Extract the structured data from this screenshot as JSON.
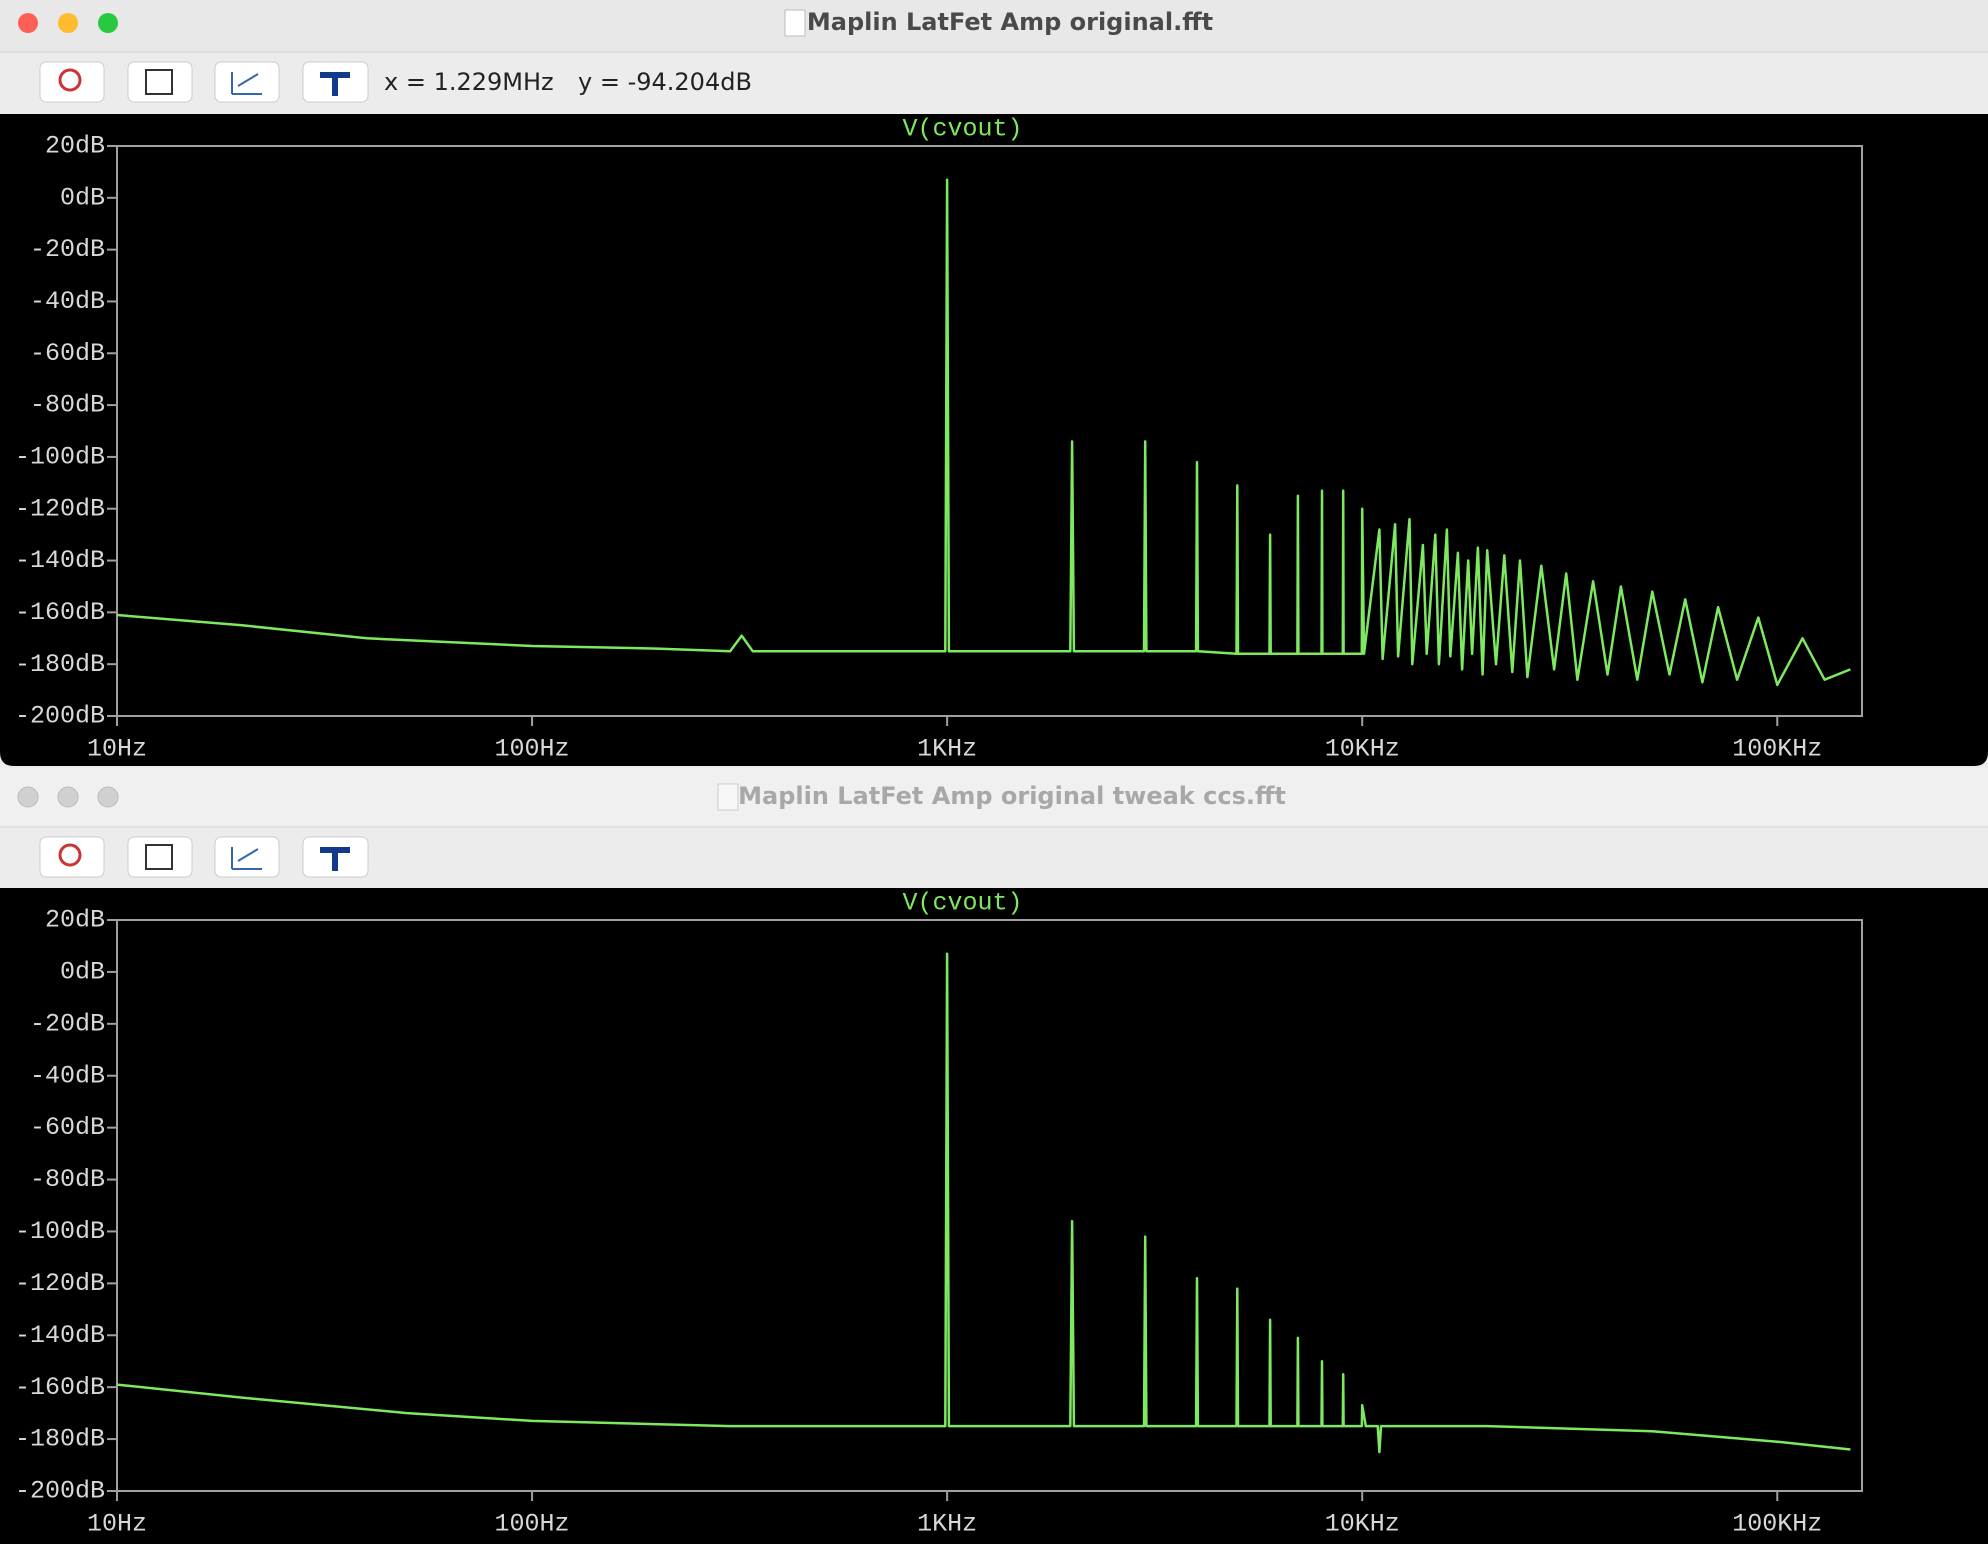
{
  "windows": [
    {
      "title": "Maplin LatFet Amp original.fft",
      "readout": {
        "x": "x = 1.229MHz",
        "y": "y = -94.204dB"
      }
    },
    {
      "title": "Maplin LatFet Amp original tweak ccs.fft"
    }
  ],
  "chart_data": [
    {
      "type": "line",
      "title": "V(cvout)",
      "color": "#7ee860",
      "xscale": "log",
      "x": [
        10,
        20,
        40,
        100,
        200,
        300,
        320,
        340,
        600,
        900,
        990,
        1000,
        1010,
        1100,
        1980,
        2000,
        2020,
        2980,
        3000,
        3020,
        3980,
        4000,
        4020,
        4980,
        5000,
        5020,
        5980,
        6000,
        6020,
        6980,
        7000,
        7020,
        7980,
        8000,
        8020,
        8980,
        9000,
        9020,
        9980,
        10000,
        10100,
        11000,
        11200,
        12000,
        12200,
        13000,
        13200,
        14000,
        14300,
        15000,
        15300,
        16000,
        16300,
        17000,
        17400,
        18000,
        18400,
        19000,
        19500,
        20000,
        21000,
        22000,
        23000,
        24000,
        25000,
        27000,
        29000,
        31000,
        33000,
        36000,
        39000,
        42000,
        46000,
        50000,
        55000,
        60000,
        66000,
        72000,
        80000,
        90000,
        100000,
        115000,
        130000,
        150000
      ],
      "values": [
        -161,
        -165,
        -170,
        -173,
        -174,
        -175,
        -169,
        -175,
        -175,
        -175,
        -175,
        7,
        -175,
        -175,
        -175,
        -94,
        -175,
        -175,
        -94,
        -175,
        -175,
        -102,
        -175,
        -176,
        -111,
        -176,
        -176,
        -130,
        -176,
        -176,
        -115,
        -176,
        -176,
        -113,
        -176,
        -176,
        -113,
        -176,
        -176,
        -120,
        -176,
        -128,
        -178,
        -126,
        -177,
        -124,
        -180,
        -134,
        -176,
        -130,
        -180,
        -128,
        -177,
        -137,
        -182,
        -140,
        -176,
        -135,
        -184,
        -136,
        -180,
        -138,
        -183,
        -140,
        -185,
        -142,
        -182,
        -145,
        -186,
        -148,
        -184,
        -150,
        -186,
        -152,
        -184,
        -155,
        -187,
        -158,
        -186,
        -162,
        -188,
        -170,
        -186,
        -182
      ],
      "xlim": [
        10,
        160000
      ],
      "ylim": [
        -200,
        20
      ],
      "xticks": [
        {
          "value": 10,
          "label": "10Hz"
        },
        {
          "value": 100,
          "label": "100Hz"
        },
        {
          "value": 1000,
          "label": "1KHz"
        },
        {
          "value": 10000,
          "label": "10KHz"
        },
        {
          "value": 100000,
          "label": "100KHz"
        }
      ],
      "yticks": [
        {
          "value": 20,
          "label": "20dB"
        },
        {
          "value": 0,
          "label": "0dB"
        },
        {
          "value": -20,
          "label": "-20dB"
        },
        {
          "value": -40,
          "label": "-40dB"
        },
        {
          "value": -60,
          "label": "-60dB"
        },
        {
          "value": -80,
          "label": "-80dB"
        },
        {
          "value": -100,
          "label": "-100dB"
        },
        {
          "value": -120,
          "label": "-120dB"
        },
        {
          "value": -140,
          "label": "-140dB"
        },
        {
          "value": -160,
          "label": "-160dB"
        },
        {
          "value": -180,
          "label": "-180dB"
        },
        {
          "value": -200,
          "label": "-200dB"
        }
      ]
    },
    {
      "type": "line",
      "title": "V(cvout)",
      "color": "#7ee860",
      "xscale": "log",
      "x": [
        10,
        20,
        50,
        100,
        300,
        990,
        1000,
        1010,
        1980,
        2000,
        2020,
        2980,
        3000,
        3020,
        3980,
        4000,
        4020,
        4980,
        5000,
        5020,
        5980,
        6000,
        6020,
        6980,
        7000,
        7020,
        7980,
        8000,
        8020,
        8980,
        9000,
        9020,
        9980,
        10000,
        10200,
        10900,
        11000,
        11100,
        20000,
        50000,
        100000,
        150000
      ],
      "values": [
        -159,
        -164,
        -170,
        -173,
        -175,
        -175,
        7,
        -175,
        -175,
        -96,
        -175,
        -175,
        -102,
        -175,
        -175,
        -118,
        -175,
        -175,
        -122,
        -175,
        -175,
        -134,
        -175,
        -175,
        -141,
        -175,
        -175,
        -150,
        -175,
        -175,
        -155,
        -175,
        -175,
        -167,
        -175,
        -175,
        -185,
        -175,
        -175,
        -177,
        -181,
        -184
      ],
      "xlim": [
        10,
        160000
      ],
      "ylim": [
        -200,
        20
      ],
      "xticks": [
        {
          "value": 10,
          "label": "10Hz"
        },
        {
          "value": 100,
          "label": "100Hz"
        },
        {
          "value": 1000,
          "label": "1KHz"
        },
        {
          "value": 10000,
          "label": "10KHz"
        },
        {
          "value": 100000,
          "label": "100KHz"
        }
      ],
      "yticks": [
        {
          "value": 20,
          "label": "20dB"
        },
        {
          "value": 0,
          "label": "0dB"
        },
        {
          "value": -20,
          "label": "-20dB"
        },
        {
          "value": -40,
          "label": "-40dB"
        },
        {
          "value": -60,
          "label": "-60dB"
        },
        {
          "value": -80,
          "label": "-80dB"
        },
        {
          "value": -100,
          "label": "-100dB"
        },
        {
          "value": -120,
          "label": "-120dB"
        },
        {
          "value": -140,
          "label": "-140dB"
        },
        {
          "value": -160,
          "label": "-160dB"
        },
        {
          "value": -180,
          "label": "-180dB"
        },
        {
          "value": -200,
          "label": "-200dB"
        }
      ]
    }
  ]
}
